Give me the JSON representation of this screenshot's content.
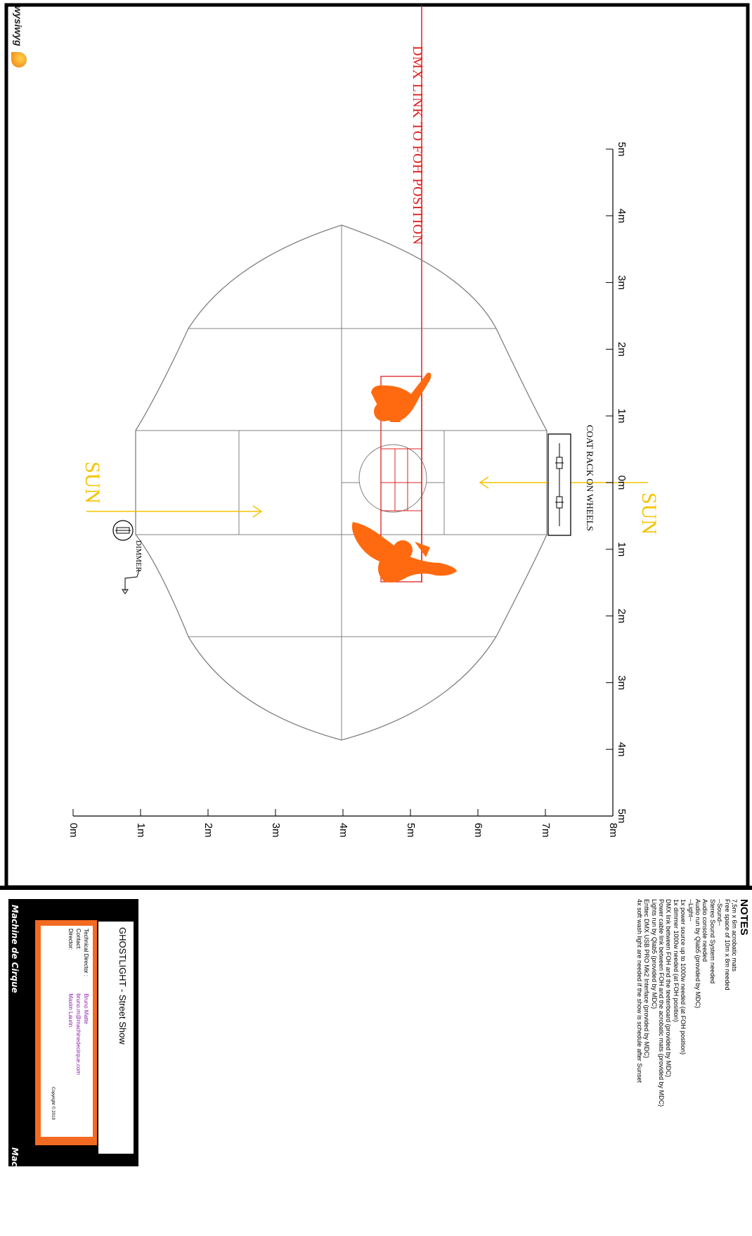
{
  "software_logo": {
    "text": "wysiwyg",
    "icon": "flame-logo-icon"
  },
  "plan": {
    "dmx_link_label": "DMX LINK TO FOH POSITION",
    "sun_left_label": "SUN",
    "sun_right_label": "SUN",
    "coat_rack_label": "COAT RACK ON WHEELS",
    "dimmer_label": "DIMMER",
    "colors": {
      "dmx_link": "#e02020",
      "sun": "#f5c400",
      "performers": "#ff6a10",
      "outline": "#808080",
      "frame": "#000000"
    }
  },
  "scale_top": {
    "ticks": [
      "5m",
      "4m",
      "3m",
      "2m",
      "1m",
      "0m",
      "1m",
      "2m",
      "3m",
      "4m",
      "5m"
    ]
  },
  "scale_bottom": {
    "ticks": [
      "0m",
      "1m",
      "2m",
      "3m",
      "4m",
      "5m",
      "6m",
      "7m",
      "8m"
    ]
  },
  "notes": {
    "heading": "NOTES",
    "lines": [
      "7,5m x 6m acrobatic mats",
      "Free space of 10m x 8m needed",
      "--Sound--",
      "Stereo Sound System needed",
      "Audio console needed",
      "Audio run by Qlab5 (provided by MDC)",
      "--Light--",
      "1x power source up to 1000w needed (at FOH position)",
      "1x dimmer 1000w needed (at FOH position)",
      "DMX link between FOH and the teeterboard (provided by MDC)",
      "Power cable link between FOH and the acrobatic mats (provided by MDC)",
      "Lights run by Qlab5 (provided by MDC)",
      "Enttec DMX USB PRO Mk2 Interface (provided by MDC)",
      "4x soft wash light are needed if the show is schedule after Sunset"
    ]
  },
  "title_block": {
    "brand": "Machine de Cirque",
    "brand_bottom": "Machine de Cirque",
    "show_title": "GHOSTLIGHT - Street Show",
    "technical_director_label": "Technical Director :",
    "technical_director_value": "Bruno Matte",
    "contact_label": "Contact:",
    "contact_value": "bruno.m@machinedecirque.com",
    "director_label": "Director:",
    "director_value": "Maxim Laurin",
    "copyright": "Copyright © 2019",
    "colors": {
      "accent": "#f26a21",
      "value_text": "#8b1fa8"
    }
  }
}
